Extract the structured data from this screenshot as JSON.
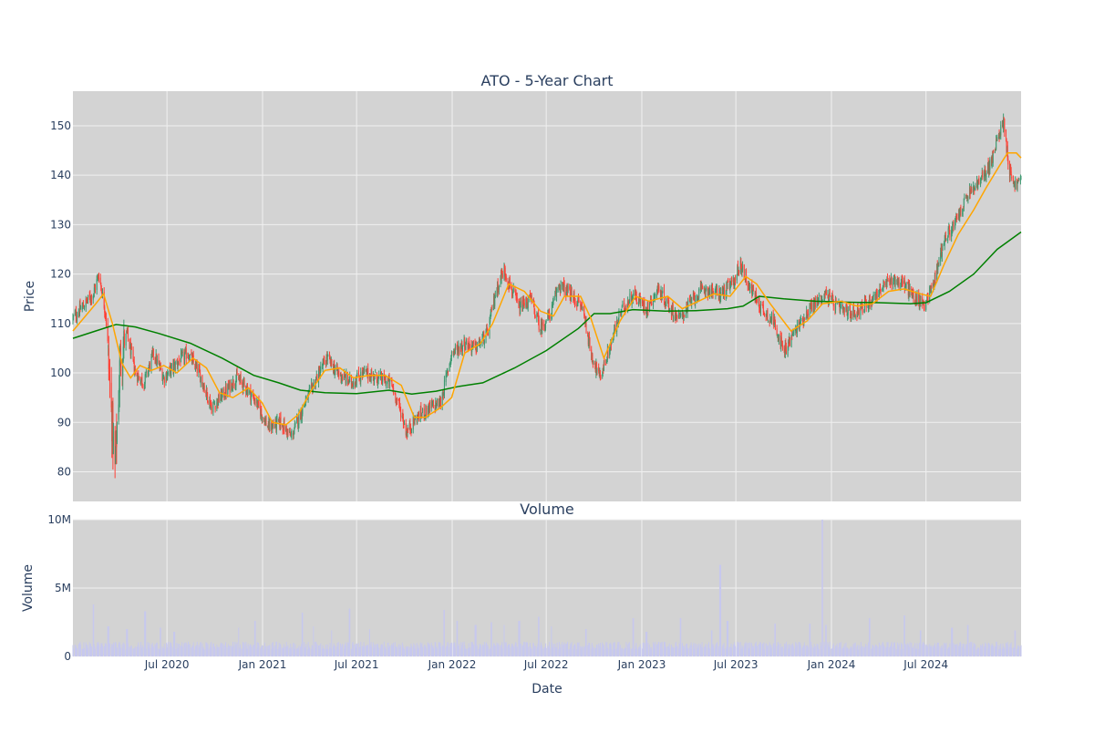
{
  "chart_data": [
    {
      "type": "candlestick",
      "title": "ATO - 5-Year Chart",
      "xlabel": "",
      "ylabel": "Price",
      "x_range": [
        "2020-01-02",
        "2024-12-31"
      ],
      "y_range": [
        74,
        157
      ],
      "y_ticks": [
        80,
        90,
        100,
        110,
        120,
        130,
        140,
        150
      ],
      "x_ticks": [
        {
          "date": "2020-07-01",
          "label": "Jul 2020"
        },
        {
          "date": "2021-01-01",
          "label": "Jan 2021"
        },
        {
          "date": "2021-07-01",
          "label": "Jul 2021"
        },
        {
          "date": "2022-01-01",
          "label": "Jan 2022"
        },
        {
          "date": "2022-07-01",
          "label": "Jul 2022"
        },
        {
          "date": "2023-01-01",
          "label": "Jan 2023"
        },
        {
          "date": "2023-07-01",
          "label": "Jul 2023"
        },
        {
          "date": "2024-01-01",
          "label": "Jan 2024"
        },
        {
          "date": "2024-07-01",
          "label": "Jul 2024"
        }
      ],
      "grid": true,
      "colors": {
        "increasing": "#3d9970",
        "decreasing": "#ff4136",
        "ma_short": "#ffa500",
        "ma_long": "#008000",
        "plot_bg": "#d3d3d3",
        "grid": "#f0f0f0"
      },
      "close_trend": [
        [
          "2020-01-02",
          111
        ],
        [
          "2020-02-10",
          116
        ],
        [
          "2020-02-21",
          120
        ],
        [
          "2020-03-05",
          112
        ],
        [
          "2020-03-16",
          92
        ],
        [
          "2020-03-23",
          80
        ],
        [
          "2020-04-02",
          103
        ],
        [
          "2020-04-15",
          108
        ],
        [
          "2020-05-01",
          100
        ],
        [
          "2020-05-18",
          98
        ],
        [
          "2020-06-05",
          104
        ],
        [
          "2020-06-25",
          99
        ],
        [
          "2020-07-20",
          102
        ],
        [
          "2020-08-10",
          104
        ],
        [
          "2020-09-01",
          100
        ],
        [
          "2020-09-25",
          93
        ],
        [
          "2020-10-20",
          96
        ],
        [
          "2020-11-12",
          99
        ],
        [
          "2020-12-01",
          97
        ],
        [
          "2020-12-20",
          94
        ],
        [
          "2021-01-12",
          89
        ],
        [
          "2021-02-05",
          90
        ],
        [
          "2021-02-25",
          87
        ],
        [
          "2021-03-20",
          93
        ],
        [
          "2021-04-15",
          99
        ],
        [
          "2021-05-05",
          103
        ],
        [
          "2021-05-25",
          100
        ],
        [
          "2021-06-20",
          98
        ],
        [
          "2021-07-15",
          100
        ],
        [
          "2021-08-10",
          99
        ],
        [
          "2021-09-05",
          98
        ],
        [
          "2021-09-25",
          92
        ],
        [
          "2021-10-05",
          88
        ],
        [
          "2021-10-25",
          91
        ],
        [
          "2021-11-20",
          93
        ],
        [
          "2021-12-10",
          94
        ],
        [
          "2021-12-31",
          104
        ],
        [
          "2022-01-25",
          106
        ],
        [
          "2022-02-15",
          105
        ],
        [
          "2022-03-10",
          108
        ],
        [
          "2022-03-25",
          116
        ],
        [
          "2022-04-10",
          121
        ],
        [
          "2022-04-25",
          117
        ],
        [
          "2022-05-10",
          113
        ],
        [
          "2022-06-01",
          115
        ],
        [
          "2022-06-20",
          109
        ],
        [
          "2022-07-10",
          112
        ],
        [
          "2022-07-25",
          118
        ],
        [
          "2022-08-15",
          116
        ],
        [
          "2022-09-10",
          113
        ],
        [
          "2022-09-25",
          104
        ],
        [
          "2022-10-12",
          99
        ],
        [
          "2022-10-28",
          104
        ],
        [
          "2022-11-20",
          112
        ],
        [
          "2022-12-15",
          116
        ],
        [
          "2023-01-10",
          113
        ],
        [
          "2023-02-01",
          117
        ],
        [
          "2023-02-25",
          113
        ],
        [
          "2023-03-15",
          111
        ],
        [
          "2023-04-10",
          115
        ],
        [
          "2023-05-01",
          117
        ],
        [
          "2023-06-01",
          116
        ],
        [
          "2023-06-25",
          118
        ],
        [
          "2023-07-10",
          122
        ],
        [
          "2023-07-25",
          118
        ],
        [
          "2023-08-20",
          113
        ],
        [
          "2023-09-15",
          110
        ],
        [
          "2023-10-01",
          104
        ],
        [
          "2023-10-20",
          108
        ],
        [
          "2023-11-20",
          113
        ],
        [
          "2023-12-20",
          116
        ],
        [
          "2024-01-15",
          113
        ],
        [
          "2024-02-10",
          112
        ],
        [
          "2024-03-10",
          114
        ],
        [
          "2024-04-05",
          117
        ],
        [
          "2024-04-28",
          119
        ],
        [
          "2024-05-20",
          118
        ],
        [
          "2024-06-10",
          115
        ],
        [
          "2024-06-28",
          114
        ],
        [
          "2024-07-15",
          118
        ],
        [
          "2024-08-05",
          127
        ],
        [
          "2024-08-25",
          130
        ],
        [
          "2024-09-20",
          136
        ],
        [
          "2024-10-15",
          139
        ],
        [
          "2024-11-05",
          143
        ],
        [
          "2024-11-20",
          149
        ],
        [
          "2024-11-28",
          151
        ],
        [
          "2024-12-08",
          141
        ],
        [
          "2024-12-20",
          138
        ],
        [
          "2024-12-31",
          139
        ]
      ],
      "ma_short": [
        [
          "2020-01-02",
          108.5
        ],
        [
          "2020-02-15",
          114
        ],
        [
          "2020-03-01",
          116
        ],
        [
          "2020-03-18",
          110
        ],
        [
          "2020-04-05",
          102
        ],
        [
          "2020-04-22",
          99
        ],
        [
          "2020-05-10",
          101.5
        ],
        [
          "2020-06-01",
          100.5
        ],
        [
          "2020-06-25",
          101.5
        ],
        [
          "2020-07-20",
          100
        ],
        [
          "2020-08-20",
          103
        ],
        [
          "2020-09-15",
          101
        ],
        [
          "2020-10-10",
          96
        ],
        [
          "2020-11-05",
          95
        ],
        [
          "2020-12-05",
          97
        ],
        [
          "2020-12-31",
          94
        ],
        [
          "2021-01-20",
          90
        ],
        [
          "2021-02-15",
          89.5
        ],
        [
          "2021-03-10",
          91.5
        ],
        [
          "2021-04-05",
          96.5
        ],
        [
          "2021-05-01",
          100.5
        ],
        [
          "2021-05-30",
          101
        ],
        [
          "2021-06-25",
          99
        ],
        [
          "2021-07-25",
          99.5
        ],
        [
          "2021-08-25",
          99.5
        ],
        [
          "2021-09-25",
          97.5
        ],
        [
          "2021-10-20",
          91
        ],
        [
          "2021-11-10",
          91
        ],
        [
          "2021-12-10",
          93
        ],
        [
          "2021-12-31",
          95
        ],
        [
          "2022-01-25",
          104
        ],
        [
          "2022-02-25",
          106
        ],
        [
          "2022-03-20",
          110
        ],
        [
          "2022-04-20",
          118
        ],
        [
          "2022-05-20",
          116.5
        ],
        [
          "2022-06-20",
          112.5
        ],
        [
          "2022-07-15",
          111.5
        ],
        [
          "2022-08-05",
          115.5
        ],
        [
          "2022-09-05",
          115.5
        ],
        [
          "2022-09-25",
          111
        ],
        [
          "2022-10-20",
          103
        ],
        [
          "2022-11-20",
          110.5
        ],
        [
          "2022-12-20",
          115.5
        ],
        [
          "2023-01-15",
          114.5
        ],
        [
          "2023-02-20",
          115.5
        ],
        [
          "2023-03-20",
          113
        ],
        [
          "2023-04-20",
          114.5
        ],
        [
          "2023-05-20",
          116
        ],
        [
          "2023-06-20",
          115.5
        ],
        [
          "2023-07-20",
          119.5
        ],
        [
          "2023-08-10",
          118
        ],
        [
          "2023-09-05",
          114
        ],
        [
          "2023-10-15",
          108.5
        ],
        [
          "2023-11-15",
          110.5
        ],
        [
          "2023-12-15",
          114
        ],
        [
          "2024-01-20",
          114.5
        ],
        [
          "2024-02-20",
          113.5
        ],
        [
          "2024-03-20",
          114
        ],
        [
          "2024-04-20",
          116.5
        ],
        [
          "2024-05-20",
          117
        ],
        [
          "2024-06-20",
          116
        ],
        [
          "2024-07-10",
          115.5
        ],
        [
          "2024-08-05",
          122
        ],
        [
          "2024-09-01",
          128
        ],
        [
          "2024-10-01",
          133
        ],
        [
          "2024-10-25",
          137.5
        ],
        [
          "2024-11-20",
          142
        ],
        [
          "2024-12-05",
          144.5
        ],
        [
          "2024-12-22",
          144.5
        ],
        [
          "2024-12-31",
          143.5
        ]
      ],
      "ma_long": [
        [
          "2020-01-02",
          107
        ],
        [
          "2020-02-15",
          108.5
        ],
        [
          "2020-03-25",
          109.8
        ],
        [
          "2020-05-01",
          109.3
        ],
        [
          "2020-06-15",
          108
        ],
        [
          "2020-08-15",
          106
        ],
        [
          "2020-10-15",
          103
        ],
        [
          "2020-12-15",
          99.5
        ],
        [
          "2021-02-01",
          98
        ],
        [
          "2021-03-15",
          96.5
        ],
        [
          "2021-05-01",
          96
        ],
        [
          "2021-07-01",
          95.8
        ],
        [
          "2021-09-01",
          96.5
        ],
        [
          "2021-10-15",
          95.7
        ],
        [
          "2021-12-01",
          96.3
        ],
        [
          "2022-01-15",
          97.3
        ],
        [
          "2022-03-01",
          98
        ],
        [
          "2022-05-01",
          101
        ],
        [
          "2022-07-01",
          104.5
        ],
        [
          "2022-09-01",
          109
        ],
        [
          "2022-10-01",
          112
        ],
        [
          "2022-11-01",
          112
        ],
        [
          "2022-12-15",
          112.8
        ],
        [
          "2023-02-15",
          112.5
        ],
        [
          "2023-04-15",
          112.6
        ],
        [
          "2023-06-15",
          113
        ],
        [
          "2023-07-15",
          113.5
        ],
        [
          "2023-08-15",
          115.5
        ],
        [
          "2023-10-01",
          115
        ],
        [
          "2023-12-01",
          114.5
        ],
        [
          "2024-02-01",
          114.3
        ],
        [
          "2024-04-01",
          114.2
        ],
        [
          "2024-06-01",
          114
        ],
        [
          "2024-07-01",
          114.2
        ],
        [
          "2024-08-15",
          116.5
        ],
        [
          "2024-10-01",
          120
        ],
        [
          "2024-11-15",
          125
        ],
        [
          "2024-12-31",
          128.5
        ]
      ]
    },
    {
      "type": "bar",
      "title": "Volume",
      "xlabel": "Date",
      "ylabel": "Volume",
      "y_range": [
        0,
        10000000
      ],
      "y_ticks": [
        {
          "value": 0,
          "label": "0"
        },
        {
          "value": 5000000,
          "label": "5M"
        },
        {
          "value": 10000000,
          "label": "10M"
        }
      ],
      "grid": true,
      "colors": {
        "bar": "#c7c8ee"
      },
      "baseline": 900000,
      "spikes": [
        [
          "2020-02-10",
          3800000
        ],
        [
          "2020-03-10",
          2200000
        ],
        [
          "2020-04-15",
          2000000
        ],
        [
          "2020-05-20",
          3300000
        ],
        [
          "2020-06-19",
          2100000
        ],
        [
          "2020-07-15",
          1800000
        ],
        [
          "2020-11-15",
          2100000
        ],
        [
          "2020-12-18",
          2600000
        ],
        [
          "2021-03-19",
          3200000
        ],
        [
          "2021-04-10",
          2200000
        ],
        [
          "2021-05-15",
          1900000
        ],
        [
          "2021-06-18",
          3500000
        ],
        [
          "2021-07-25",
          2000000
        ],
        [
          "2021-12-17",
          3400000
        ],
        [
          "2022-01-10",
          2600000
        ],
        [
          "2022-02-15",
          2300000
        ],
        [
          "2022-03-18",
          2500000
        ],
        [
          "2022-04-10",
          2300000
        ],
        [
          "2022-05-10",
          2600000
        ],
        [
          "2022-06-17",
          2900000
        ],
        [
          "2022-07-10",
          2200000
        ],
        [
          "2022-09-16",
          2000000
        ],
        [
          "2022-12-16",
          2800000
        ],
        [
          "2023-01-10",
          1800000
        ],
        [
          "2023-03-17",
          2800000
        ],
        [
          "2023-05-15",
          1900000
        ],
        [
          "2023-06-01",
          6700000
        ],
        [
          "2023-06-15",
          2600000
        ],
        [
          "2023-09-15",
          2400000
        ],
        [
          "2023-11-20",
          2400000
        ],
        [
          "2023-12-15",
          10000000
        ],
        [
          "2023-12-22",
          2300000
        ],
        [
          "2024-03-15",
          2800000
        ],
        [
          "2024-05-20",
          3000000
        ],
        [
          "2024-06-21",
          1900000
        ],
        [
          "2024-08-20",
          2100000
        ],
        [
          "2024-09-20",
          2300000
        ],
        [
          "2024-12-20",
          1900000
        ]
      ]
    }
  ]
}
